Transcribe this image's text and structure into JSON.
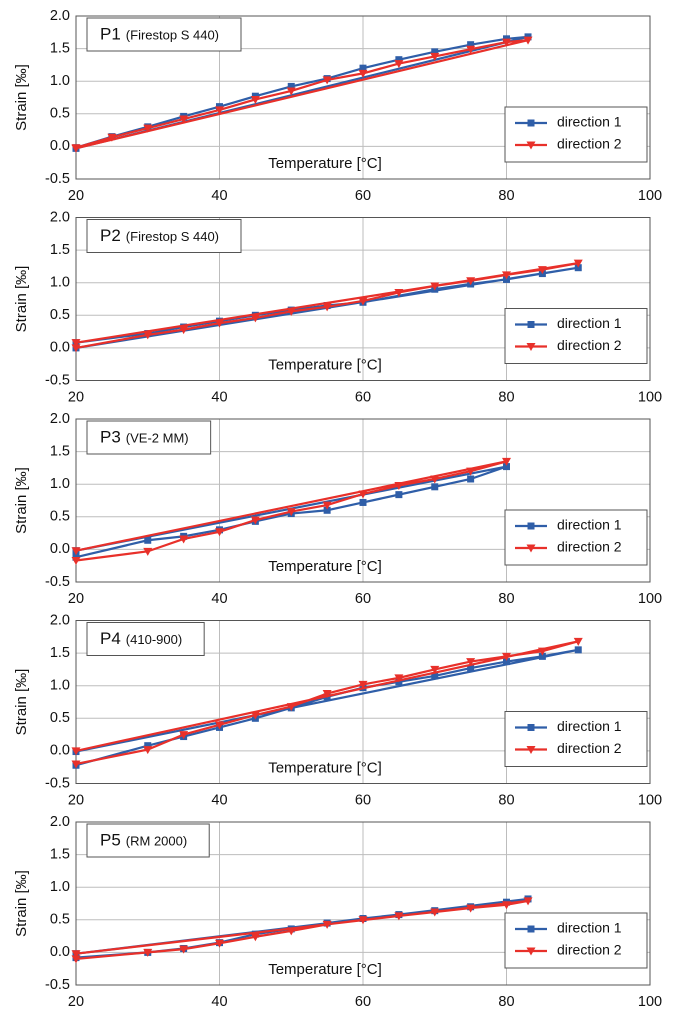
{
  "chart_data": [
    {
      "type": "line",
      "title": "P1",
      "subtitle": "(Firestop S 440)",
      "x_label": "Temperature [°C]",
      "y_label": "Strain [‰]",
      "xlim": [
        20,
        100
      ],
      "ylim": [
        -0.5,
        2
      ],
      "xticks": [
        20,
        40,
        60,
        80,
        100
      ],
      "yticks": [
        -0.5,
        {
          "value": 0,
          "label": "0.0"
        },
        0.5,
        {
          "value": 1,
          "label": "1.0"
        },
        1.5,
        {
          "value": 2,
          "label": "2.0"
        }
      ],
      "grid": true,
      "legend": "lower right",
      "series": [
        {
          "name": "direction 1",
          "color": "#2f5ea8",
          "marker": "square",
          "x": [
            20,
            25,
            30,
            35,
            40,
            45,
            50,
            55,
            60,
            65,
            70,
            75,
            80,
            83,
            20
          ],
          "values": [
            -0.02,
            0.15,
            0.3,
            0.46,
            0.61,
            0.77,
            0.92,
            1.04,
            1.2,
            1.33,
            1.45,
            1.56,
            1.65,
            1.68,
            -0.03
          ]
        },
        {
          "name": "direction 2",
          "color": "#e8302a",
          "marker": "triangle",
          "x": [
            20,
            25,
            30,
            35,
            40,
            45,
            50,
            55,
            60,
            65,
            70,
            75,
            80,
            83,
            20
          ],
          "values": [
            -0.02,
            0.14,
            0.28,
            0.42,
            0.56,
            0.72,
            0.85,
            1.02,
            1.12,
            1.27,
            1.38,
            1.49,
            1.6,
            1.63,
            -0.03
          ]
        }
      ]
    },
    {
      "type": "line",
      "title": "P2",
      "subtitle": "(Firestop S 440)",
      "x_label": "Temperature [°C]",
      "y_label": "Strain [‰]",
      "xlim": [
        20,
        100
      ],
      "ylim": [
        -0.5,
        2
      ],
      "xticks": [
        20,
        40,
        60,
        80,
        100
      ],
      "yticks": [
        -0.5,
        {
          "value": 0,
          "label": "0.0"
        },
        0.5,
        {
          "value": 1,
          "label": "1.0"
        },
        1.5,
        {
          "value": 2,
          "label": "2.0"
        }
      ],
      "grid": true,
      "legend": "lower right",
      "series": [
        {
          "name": "direction 1",
          "color": "#2f5ea8",
          "marker": "square",
          "x": [
            20,
            30,
            35,
            40,
            45,
            50,
            55,
            60,
            70,
            75,
            80,
            85,
            90,
            20
          ],
          "values": [
            0.08,
            0.22,
            0.32,
            0.41,
            0.5,
            0.58,
            0.65,
            0.7,
            0.9,
            0.98,
            1.05,
            1.14,
            1.23,
            0.0
          ]
        },
        {
          "name": "direction 2",
          "color": "#e8302a",
          "marker": "triangle",
          "x": [
            20,
            30,
            35,
            40,
            45,
            50,
            55,
            60,
            65,
            70,
            75,
            80,
            85,
            90,
            20
          ],
          "values": [
            0.0,
            0.2,
            0.28,
            0.38,
            0.46,
            0.56,
            0.63,
            0.72,
            0.85,
            0.95,
            1.03,
            1.12,
            1.2,
            1.3,
            0.08
          ]
        }
      ]
    },
    {
      "type": "line",
      "title": "P3",
      "subtitle": "(VE-2 MM)",
      "x_label": "Temperature [°C]",
      "y_label": "Strain [‰]",
      "xlim": [
        20,
        100
      ],
      "ylim": [
        -0.5,
        2
      ],
      "xticks": [
        20,
        40,
        60,
        80,
        100
      ],
      "yticks": [
        -0.5,
        {
          "value": 0,
          "label": "0.0"
        },
        0.5,
        {
          "value": 1,
          "label": "1.0"
        },
        1.5,
        {
          "value": 2,
          "label": "2.0"
        }
      ],
      "grid": true,
      "legend": "lower right",
      "series": [
        {
          "name": "direction 1",
          "color": "#2f5ea8",
          "marker": "square",
          "x": [
            20,
            30,
            35,
            40,
            45,
            50,
            55,
            60,
            65,
            70,
            75,
            80,
            20
          ],
          "values": [
            -0.12,
            0.14,
            0.2,
            0.3,
            0.43,
            0.55,
            0.6,
            0.72,
            0.84,
            0.96,
            1.08,
            1.27,
            -0.02
          ]
        },
        {
          "name": "direction 2",
          "color": "#e8302a",
          "marker": "triangle",
          "x": [
            20,
            30,
            35,
            40,
            45,
            50,
            55,
            60,
            65,
            70,
            75,
            80,
            20
          ],
          "values": [
            -0.17,
            -0.03,
            0.16,
            0.27,
            0.45,
            0.58,
            0.68,
            0.85,
            0.98,
            1.08,
            1.2,
            1.35,
            -0.02
          ]
        }
      ]
    },
    {
      "type": "line",
      "title": "P4",
      "subtitle": "(410-900)",
      "x_label": "Temperature [°C]",
      "y_label": "Strain [‰]",
      "xlim": [
        20,
        100
      ],
      "ylim": [
        -0.5,
        2
      ],
      "xticks": [
        20,
        40,
        60,
        80,
        100
      ],
      "yticks": [
        -0.5,
        {
          "value": 0,
          "label": "0.0"
        },
        0.5,
        {
          "value": 1,
          "label": "1.0"
        },
        1.5,
        {
          "value": 2,
          "label": "2.0"
        }
      ],
      "grid": true,
      "legend": "lower right",
      "series": [
        {
          "name": "direction 1",
          "color": "#2f5ea8",
          "marker": "square",
          "x": [
            20,
            30,
            35,
            40,
            45,
            50,
            55,
            60,
            65,
            70,
            75,
            80,
            85,
            90,
            20
          ],
          "values": [
            -0.22,
            0.08,
            0.22,
            0.36,
            0.5,
            0.66,
            0.83,
            0.97,
            1.06,
            1.15,
            1.27,
            1.37,
            1.45,
            1.55,
            -0.01
          ]
        },
        {
          "name": "direction 2",
          "color": "#e8302a",
          "marker": "triangle",
          "x": [
            20,
            30,
            35,
            40,
            45,
            50,
            55,
            60,
            65,
            70,
            75,
            80,
            85,
            90,
            20
          ],
          "values": [
            -0.2,
            0.02,
            0.25,
            0.4,
            0.55,
            0.68,
            0.88,
            1.02,
            1.12,
            1.25,
            1.37,
            1.45,
            1.53,
            1.68,
            0.0
          ]
        }
      ]
    },
    {
      "type": "line",
      "title": "P5",
      "subtitle": "(RM 2000)",
      "x_label": "Temperature [°C]",
      "y_label": "Strain [‰]",
      "xlim": [
        20,
        100
      ],
      "ylim": [
        -0.5,
        2
      ],
      "xticks": [
        20,
        40,
        60,
        80,
        100
      ],
      "yticks": [
        -0.5,
        {
          "value": 0,
          "label": "0.0"
        },
        0.5,
        {
          "value": 1,
          "label": "1.0"
        },
        1.5,
        {
          "value": 2,
          "label": "2.0"
        }
      ],
      "grid": true,
      "legend": "lower right",
      "series": [
        {
          "name": "direction 1",
          "color": "#2f5ea8",
          "marker": "square",
          "x": [
            20,
            30,
            35,
            40,
            45,
            50,
            55,
            60,
            65,
            70,
            75,
            80,
            83,
            20
          ],
          "values": [
            -0.08,
            0.0,
            0.06,
            0.15,
            0.28,
            0.36,
            0.45,
            0.52,
            0.58,
            0.64,
            0.7,
            0.77,
            0.82,
            -0.02
          ]
        },
        {
          "name": "direction 2",
          "color": "#e8302a",
          "marker": "triangle",
          "x": [
            20,
            30,
            35,
            40,
            45,
            50,
            55,
            60,
            65,
            70,
            75,
            80,
            83,
            20
          ],
          "values": [
            -0.1,
            0.0,
            0.05,
            0.14,
            0.24,
            0.33,
            0.43,
            0.5,
            0.56,
            0.62,
            0.68,
            0.73,
            0.79,
            -0.02
          ]
        }
      ]
    }
  ]
}
